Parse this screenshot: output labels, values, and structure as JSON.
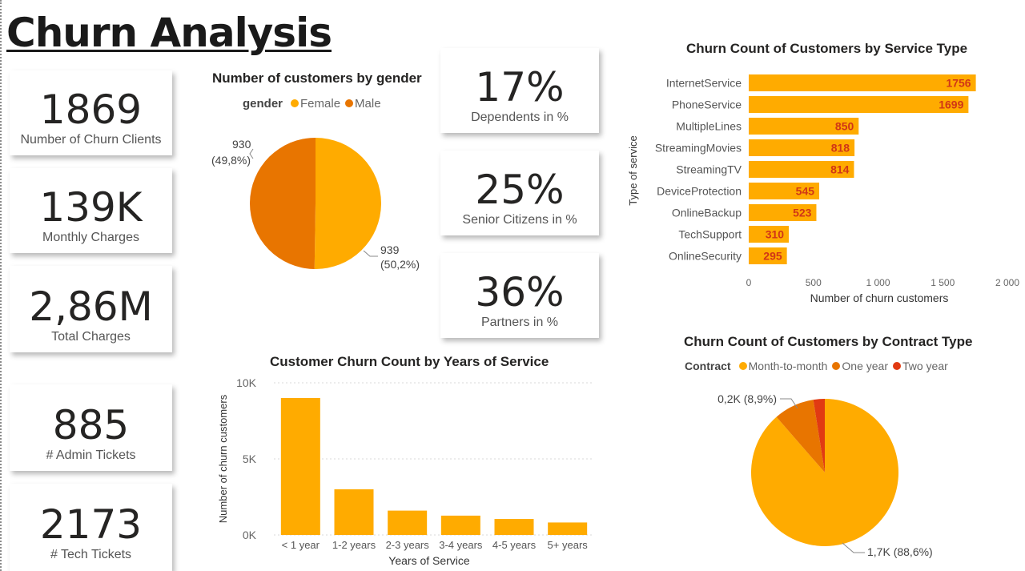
{
  "page": {
    "title": "Churn Analysis"
  },
  "kpis": [
    {
      "value": "1869",
      "label": "Number of Churn Clients"
    },
    {
      "value": "139K",
      "label": "Monthly Charges"
    },
    {
      "value": "2,86M",
      "label": "Total Charges"
    },
    {
      "value": "885",
      "label": "# Admin Tickets"
    },
    {
      "value": "2173",
      "label": "# Tech Tickets"
    }
  ],
  "pct_cards": [
    {
      "value": "17%",
      "label": "Dependents in %"
    },
    {
      "value": "25%",
      "label": "Senior Citizens in %"
    },
    {
      "value": "36%",
      "label": "Partners in %"
    }
  ],
  "colors": {
    "amber": "#FFAB00",
    "orange": "#E87500",
    "red": "#E13A12",
    "bar_label": "#D13616"
  },
  "chart_data": [
    {
      "id": "gender",
      "type": "pie",
      "title": "Number of customers by gender",
      "legend_title": "gender",
      "legend_position": "top",
      "series": [
        {
          "name": "Female",
          "value": 939,
          "label_value": "939",
          "label_pct": "(50,2%)",
          "color": "#FFAB00"
        },
        {
          "name": "Male",
          "value": 930,
          "label_value": "930",
          "label_pct": "(49,8%)",
          "color": "#E87500"
        }
      ]
    },
    {
      "id": "service",
      "type": "bar",
      "orientation": "horizontal",
      "title": "Churn Count of Customers by Service Type",
      "xlabel": "Number of churn customers",
      "ylabel": "Type of service",
      "xlim": [
        0,
        2000
      ],
      "xticks": [
        "0",
        "500",
        "1 000",
        "1 500",
        "2 000"
      ],
      "grid": false,
      "categories": [
        "InternetService",
        "PhoneService",
        "MultipleLines",
        "StreamingMovies",
        "StreamingTV",
        "DeviceProtection",
        "OnlineBackup",
        "TechSupport",
        "OnlineSecurity"
      ],
      "values": [
        1756,
        1699,
        850,
        818,
        814,
        545,
        523,
        310,
        295
      ]
    },
    {
      "id": "years",
      "type": "bar",
      "orientation": "vertical",
      "title": "Customer Churn Count by Years of Service",
      "xlabel": "Years of Service",
      "ylabel": "Number of churn customers",
      "ylim": [
        0,
        10000
      ],
      "yticks": [
        "0K",
        "5K",
        "10K"
      ],
      "grid": true,
      "categories": [
        "< 1 year",
        "1-2 years",
        "2-3 years",
        "3-4 years",
        "4-5 years",
        "5+ years"
      ],
      "values": [
        9000,
        3000,
        1600,
        1270,
        1050,
        820
      ]
    },
    {
      "id": "contract",
      "type": "pie",
      "title": "Churn Count of Customers by Contract Type",
      "legend_title": "Contract",
      "legend_position": "top",
      "series": [
        {
          "name": "Month-to-month",
          "value": 88.6,
          "label": "1,7K (88,6%)",
          "color": "#FFAB00"
        },
        {
          "name": "One year",
          "value": 8.9,
          "label": "0,2K (8,9%)",
          "color": "#E87500"
        },
        {
          "name": "Two year",
          "value": 2.5,
          "label": "",
          "color": "#E13A12"
        }
      ]
    }
  ]
}
